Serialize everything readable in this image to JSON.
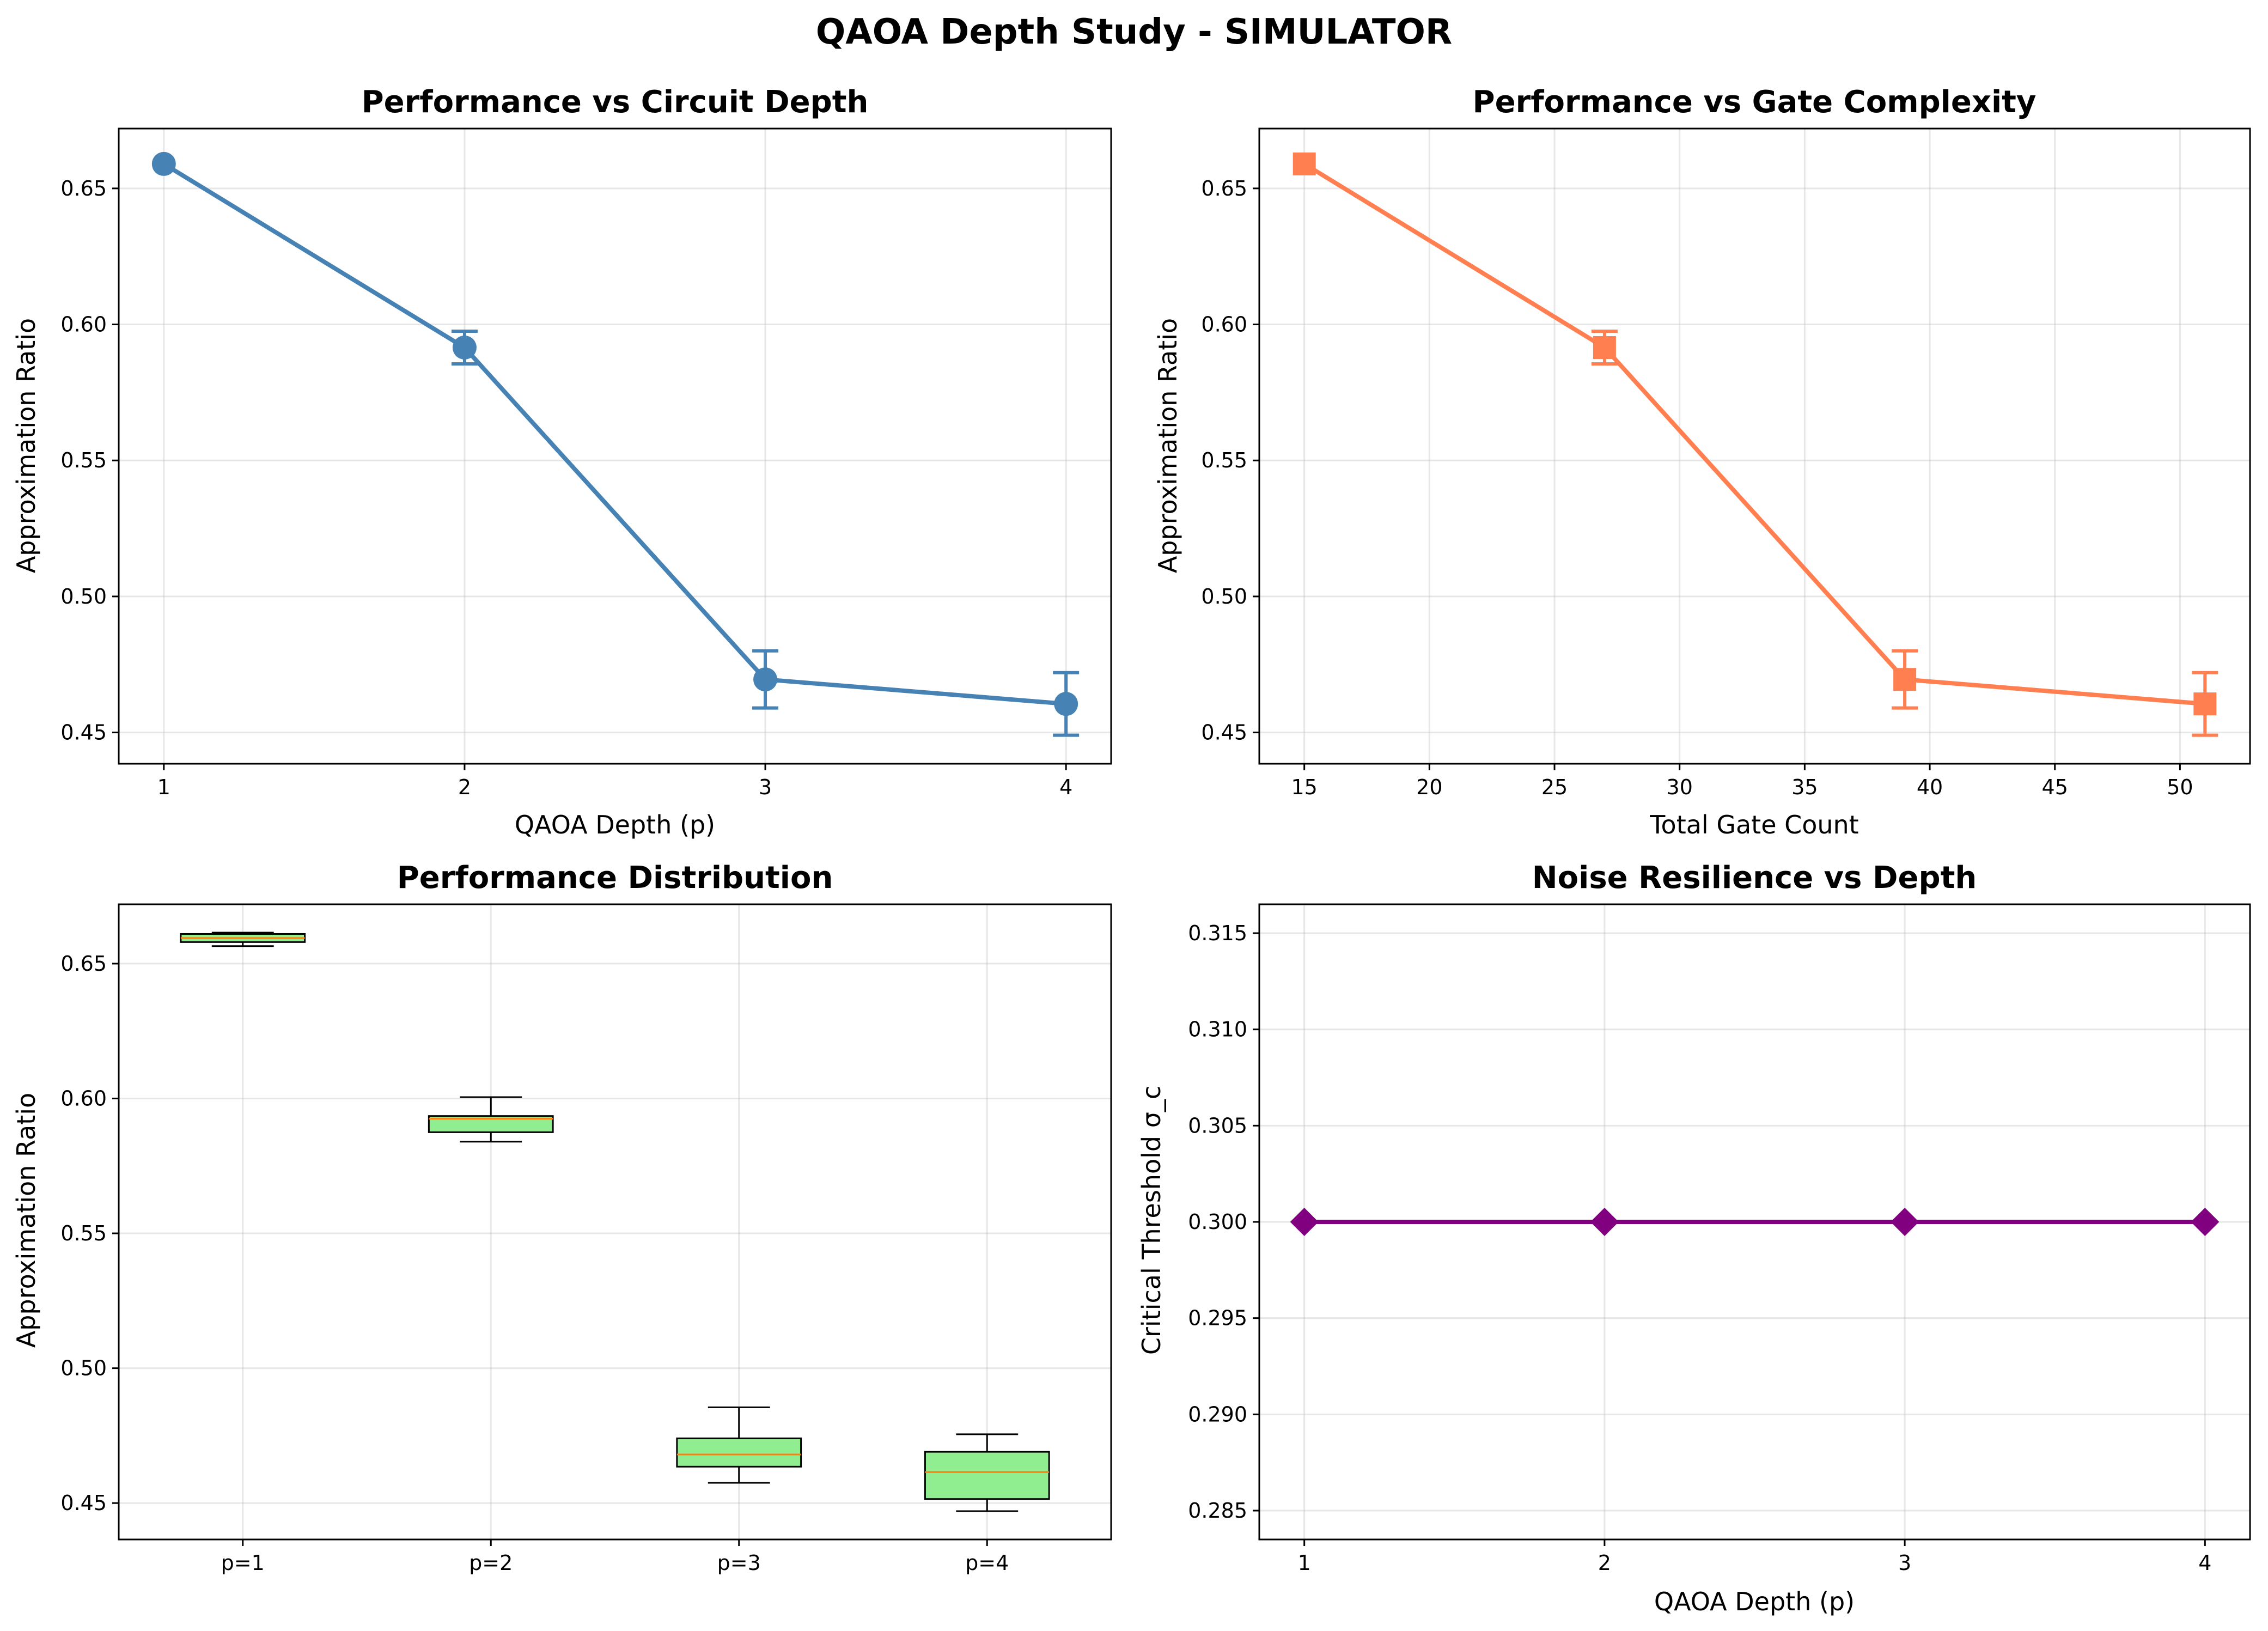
{
  "figure": {
    "suptitle": "QAOA Depth Study - SIMULATOR"
  },
  "chart_data": [
    {
      "id": "depth",
      "type": "line",
      "title": "Performance vs Circuit Depth",
      "xlabel": "QAOA Depth (p)",
      "ylabel": "Approximation Ratio",
      "x": [
        1,
        2,
        3,
        4
      ],
      "y": [
        0.659,
        0.5915,
        0.4695,
        0.4605
      ],
      "yerr": [
        0.0,
        0.006,
        0.0105,
        0.0115
      ],
      "xlim": [
        0.85,
        4.15
      ],
      "ylim": [
        0.4385,
        0.672
      ],
      "xticks": [
        1,
        2,
        3,
        4
      ],
      "yticks": [
        0.45,
        0.5,
        0.55,
        0.6,
        0.65
      ],
      "color": "#4682b4",
      "marker": "circle",
      "grid": true
    },
    {
      "id": "gates",
      "type": "line",
      "title": "Performance vs Gate Complexity",
      "xlabel": "Total Gate Count",
      "ylabel": "Approximation Ratio",
      "x": [
        15,
        27,
        39,
        51
      ],
      "y": [
        0.659,
        0.5915,
        0.4695,
        0.4605
      ],
      "yerr": [
        0.0,
        0.006,
        0.0105,
        0.0115
      ],
      "xlim": [
        13.2,
        52.8
      ],
      "ylim": [
        0.4385,
        0.672
      ],
      "xticks": [
        15,
        20,
        25,
        30,
        35,
        40,
        45,
        50
      ],
      "yticks": [
        0.45,
        0.5,
        0.55,
        0.6,
        0.65
      ],
      "color": "#ff7f50",
      "marker": "square",
      "grid": true
    },
    {
      "id": "dist",
      "type": "box",
      "title": "Performance Distribution",
      "xlabel": "",
      "ylabel": "Approximation Ratio",
      "categories": [
        "p=1",
        "p=2",
        "p=3",
        "p=4"
      ],
      "boxes": [
        {
          "whislo": 0.6565,
          "q1": 0.658,
          "med": 0.6595,
          "q3": 0.661,
          "whishi": 0.6615
        },
        {
          "whislo": 0.584,
          "q1": 0.5875,
          "med": 0.5925,
          "q3": 0.5935,
          "whishi": 0.6005
        },
        {
          "whislo": 0.4575,
          "q1": 0.4635,
          "med": 0.468,
          "q3": 0.474,
          "whishi": 0.4855
        },
        {
          "whislo": 0.447,
          "q1": 0.4515,
          "med": 0.4615,
          "q3": 0.469,
          "whishi": 0.4755
        }
      ],
      "ylim": [
        0.4365,
        0.672
      ],
      "yticks": [
        0.45,
        0.5,
        0.55,
        0.6,
        0.65
      ],
      "box_color": "#90ee90",
      "median_color": "#ff7f0e",
      "grid": true
    },
    {
      "id": "noise",
      "type": "line",
      "title": "Noise Resilience vs Depth",
      "xlabel": "QAOA Depth (p)",
      "ylabel": "Critical Threshold σ_c",
      "x": [
        1,
        2,
        3,
        4
      ],
      "y": [
        0.3,
        0.3,
        0.3,
        0.3
      ],
      "xlim": [
        0.85,
        4.15
      ],
      "ylim": [
        0.2835,
        0.3165
      ],
      "xticks": [
        1,
        2,
        3,
        4
      ],
      "yticks": [
        0.285,
        0.29,
        0.295,
        0.3,
        0.305,
        0.31,
        0.315
      ],
      "color": "#800080",
      "marker": "diamond",
      "grid": true
    }
  ]
}
